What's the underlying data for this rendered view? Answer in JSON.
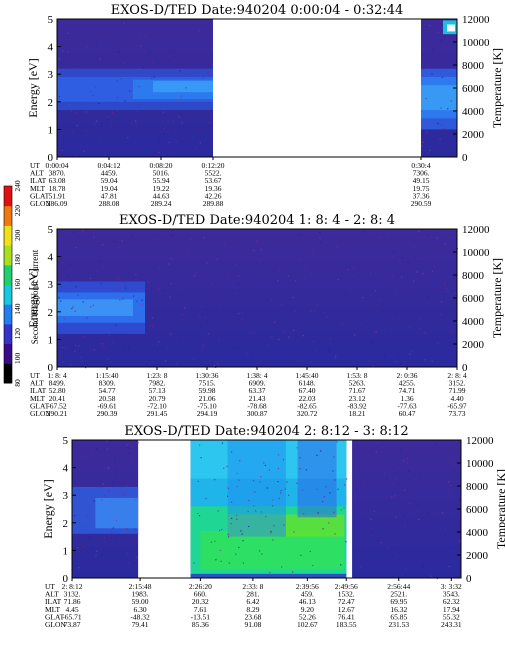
{
  "chart_data": [
    {
      "type": "heatmap",
      "title": "EXOS-D/TED   Date:940204   0:00:04 - 0:32:44",
      "ylabel": "Energy [eV]",
      "y2label": "Temperature [K]",
      "ylim": [
        0,
        5
      ],
      "y2lim": [
        0,
        12000
      ],
      "yticks": [
        "0",
        "1",
        "2",
        "3",
        "4",
        "5"
      ],
      "y2ticks": [
        "0",
        "2000",
        "4000",
        "6000",
        "8000",
        "10000",
        "12000"
      ],
      "data_windows": [
        [
          0,
          0.39
        ],
        [
          0.91,
          1.0
        ]
      ],
      "orbit_table": {
        "row_labels": [
          "UT",
          "ALT",
          "ILAT",
          "MLT",
          "GLAT",
          "GLON"
        ],
        "columns": [
          [
            "0:00:04",
            "3870.",
            "63.08",
            "18.78",
            "51.91",
            "286.09"
          ],
          [
            "0:04:12",
            "4459.",
            "59.04",
            "19.04",
            "47.81",
            "288.08"
          ],
          [
            "0:08:20",
            "5016.",
            "55.94",
            "19.22",
            "44.63",
            "289.24"
          ],
          [
            "0:12:20",
            "5522.",
            "53.67",
            "19.36",
            "42.26",
            "289.88"
          ],
          [
            "0:30:4",
            "7306.",
            "49.15",
            "19.75",
            "37.36",
            "290.59"
          ]
        ],
        "column_pos": [
          0.0,
          0.13,
          0.26,
          0.39,
          0.91
        ]
      }
    },
    {
      "type": "heatmap",
      "title": "EXOS-D/TED   Date:940204   1: 8: 4 - 2: 8: 4",
      "ylabel": "Energy [eV]",
      "y2label": "Temperature [K]",
      "ylim": [
        0,
        5
      ],
      "y2lim": [
        0,
        12000
      ],
      "yticks": [
        "0",
        "1",
        "2",
        "3",
        "4",
        "5"
      ],
      "y2ticks": [
        "0",
        "2000",
        "4000",
        "6000",
        "8000",
        "10000",
        "12000"
      ],
      "data_windows": [
        [
          0,
          1.0
        ]
      ],
      "orbit_table": {
        "row_labels": [
          "UT",
          "ALT",
          "ILAT",
          "MLT",
          "GLAT",
          "GLON"
        ],
        "columns": [
          [
            "1: 8: 4",
            "8499.",
            "52.80",
            "20.41",
            "-67.52",
            "290.21"
          ],
          [
            "1:15:40",
            "8309.",
            "54.77",
            "20.58",
            "-69.61",
            "290.39"
          ],
          [
            "1:23: 8",
            "7982.",
            "57.13",
            "20.79",
            "-72.10",
            "291.45"
          ],
          [
            "1:30:36",
            "7515.",
            "59.98",
            "21.06",
            "-75.10",
            "294.19"
          ],
          [
            "1:38: 4",
            "6909.",
            "63.37",
            "21.43",
            "-78.68",
            "300.87"
          ],
          [
            "1:45:40",
            "6148.",
            "67.40",
            "22.03",
            "-82.65",
            "320.72"
          ],
          [
            "1:53: 8",
            "5263.",
            "71.67",
            "23.12",
            "-83.92",
            "18.21"
          ],
          [
            "2: 0:36",
            "4255.",
            "74.71",
            "1.36",
            "-77.63",
            "60.47"
          ],
          [
            "2: 8: 4",
            "3152.",
            "71.99",
            "4.40",
            "-65.97",
            "73.73"
          ]
        ],
        "column_pos": [
          0.0,
          0.125,
          0.25,
          0.375,
          0.5,
          0.625,
          0.75,
          0.875,
          1.0
        ]
      }
    },
    {
      "type": "heatmap",
      "title": "EXOS-D/TED   Date:940204   2: 8:12 - 3: 8:12",
      "ylabel": "Energy [eV]",
      "y2label": "Temperature [K]",
      "ylim": [
        0,
        5
      ],
      "y2lim": [
        0,
        12000
      ],
      "yticks": [
        "0",
        "1",
        "2",
        "3",
        "4",
        "5"
      ],
      "y2ticks": [
        "0",
        "2000",
        "4000",
        "6000",
        "8000",
        "10000",
        "12000"
      ],
      "data_windows": [
        [
          0,
          0.17
        ],
        [
          0.305,
          0.705
        ],
        [
          0.72,
          1.0
        ]
      ],
      "orbit_table": {
        "row_labels": [
          "UT",
          "ALT",
          "ILAT",
          "MLT",
          "GLAT",
          "GLON"
        ],
        "columns": [
          [
            "2: 8:12",
            "3132.",
            "71.86",
            "4.45",
            "-65.71",
            "73.87"
          ],
          [
            "2:15:48",
            "1983.",
            "59.00",
            "6.30",
            "-48.32",
            "79.41"
          ],
          [
            "2:26:20",
            "660.",
            "20.32",
            "7.61",
            "-13.51",
            "85.36"
          ],
          [
            "2:33: 8",
            "281.",
            "6.42",
            "8.29",
            "23.68",
            "91.08"
          ],
          [
            "2:39:56",
            "459.",
            "46.13",
            "9.20",
            "52.26",
            "102.67"
          ],
          [
            "2:49:56",
            "1532.",
            "72.47",
            "12.67",
            "76.41",
            "183.55"
          ],
          [
            "2:56:44",
            "2521.",
            "69.95",
            "16.32",
            "65.85",
            "231.53"
          ],
          [
            "3: 3:32",
            "3543.",
            "62.32",
            "17.94",
            "55.32",
            "243.31"
          ]
        ],
        "column_pos": [
          0.0,
          0.175,
          0.33,
          0.465,
          0.605,
          0.705,
          0.84,
          0.975
        ]
      }
    }
  ],
  "colorbar": {
    "label": "Second Harmonic Current",
    "ticks": [
      "80",
      "100",
      "120",
      "140",
      "160",
      "180",
      "200",
      "220",
      "240"
    ],
    "colors": [
      "#000000",
      "#3a0a8c",
      "#3434c8",
      "#1f7ff0",
      "#18c8e0",
      "#20d070",
      "#a8e020",
      "#f0e018",
      "#f07810",
      "#e01010"
    ]
  }
}
